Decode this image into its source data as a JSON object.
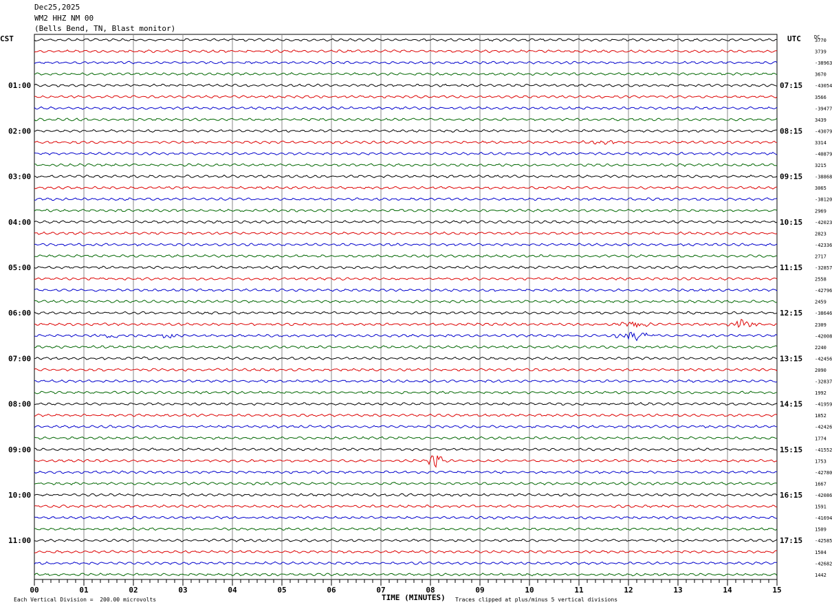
{
  "header": {
    "date": "Dec25,2025",
    "station": "WM2 HHZ NM 00",
    "location": "(Bells Bend, TN, Blast monitor)"
  },
  "left_zone": "CST",
  "right_zone": "UTC",
  "dc_header": "DC",
  "footer": {
    "vertical_division": "Each Vertical Division =  200.00 microvolts",
    "clip_note": "Traces clipped at plus/minus 5 vertical divisions"
  },
  "chart_data": {
    "type": "line",
    "title": "",
    "xlabel": "TIME (MINUTES)",
    "ylabel": "",
    "xlim": [
      0,
      15
    ],
    "x_tick_labels": [
      "00",
      "01",
      "02",
      "03",
      "04",
      "05",
      "06",
      "07",
      "08",
      "09",
      "10",
      "11",
      "12",
      "13",
      "14",
      "15"
    ],
    "rows_per_hour": 4,
    "trace_colors": [
      "#000000",
      "#dd0000",
      "#0000cc",
      "#006600"
    ],
    "left_time_labels": [
      "01:00",
      "02:00",
      "03:00",
      "04:00",
      "05:00",
      "06:00",
      "07:00",
      "08:00",
      "09:00",
      "10:00",
      "11:00"
    ],
    "right_time_labels": [
      "07:15",
      "08:15",
      "09:15",
      "10:15",
      "11:15",
      "12:15",
      "13:15",
      "14:15",
      "15:15",
      "16:15",
      "17:15"
    ],
    "dc_offsets": [
      "3770",
      "3739",
      "-38963",
      "3670",
      "-43054",
      "3566",
      "-39477",
      "3439",
      "-43079",
      "3314",
      "-40879",
      "3215",
      "-38868",
      "3065",
      "-38120",
      "2969",
      "-42023",
      "2823",
      "-42336",
      "2717",
      "-32857",
      "2558",
      "-42796",
      "2459",
      "-38646",
      "2309",
      "-42008",
      "2240",
      "-42456",
      "2090",
      "-32837",
      "1992",
      "-41959",
      "1852",
      "-42426",
      "1774",
      "-41552",
      "1753",
      "-42780",
      "1667",
      "-42086",
      "1591",
      "-41694",
      "1509",
      "-42585",
      "1504",
      "-42682",
      "1442"
    ],
    "events": [
      {
        "row": 25,
        "minute_start": 11.7,
        "minute_end": 12.5,
        "amplitude": 1.0
      },
      {
        "row": 26,
        "minute_start": 1.3,
        "minute_end": 1.7,
        "amplitude": 0.8
      },
      {
        "row": 26,
        "minute_start": 2.5,
        "minute_end": 2.9,
        "amplitude": 0.8
      },
      {
        "row": 26,
        "minute_start": 11.7,
        "minute_end": 12.6,
        "amplitude": 1.2
      },
      {
        "row": 25,
        "minute_start": 14.0,
        "minute_end": 14.6,
        "amplitude": 1.5
      },
      {
        "row": 28,
        "minute_start": 2.1,
        "minute_end": 2.35,
        "amplitude": 0.8
      },
      {
        "row": 37,
        "minute_start": 7.95,
        "minute_end": 8.3,
        "amplitude": 2.2
      },
      {
        "row": 36,
        "minute_start": 14.25,
        "minute_end": 14.4,
        "amplitude": 0.5
      },
      {
        "row": 9,
        "minute_start": 11.0,
        "minute_end": 11.9,
        "amplitude": 0.4
      }
    ]
  }
}
